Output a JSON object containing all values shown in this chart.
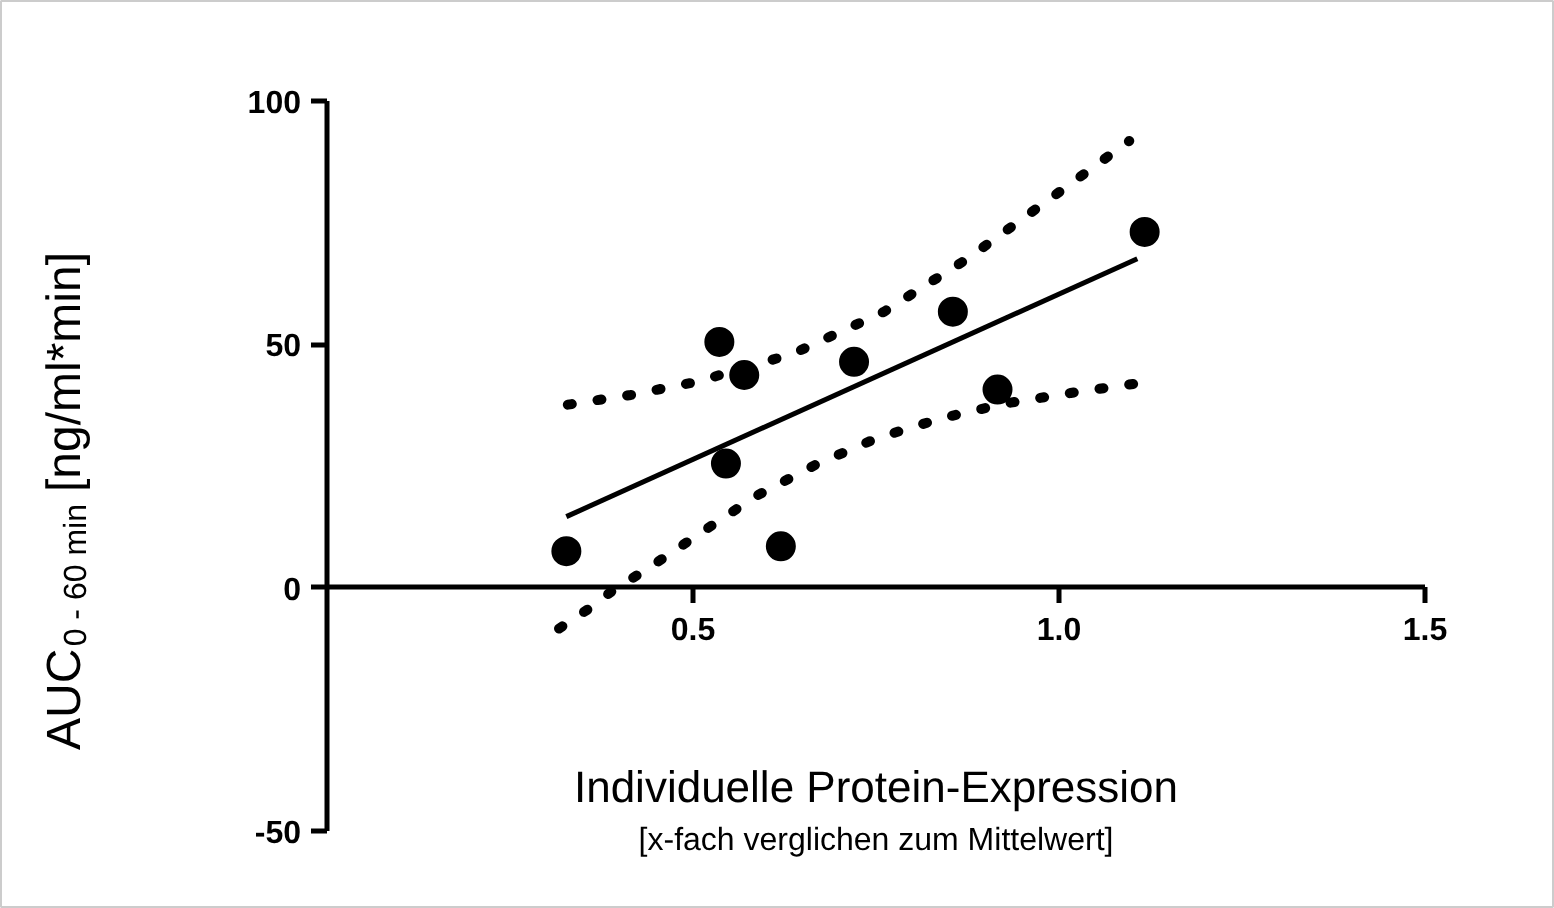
{
  "chart_data": {
    "type": "scatter",
    "xlabel": "Individuelle Protein-Expression\n[x-fach verglichen zum Mittelwert]",
    "ylabel": "AUC$_{0 - 60 min}$ [ng/ml*min]",
    "xlim": [
      0,
      1.5
    ],
    "ylim": [
      -50,
      100
    ],
    "xticks": [
      {
        "value": 0.5,
        "label": "0.5"
      },
      {
        "value": 1.0,
        "label": "1.0"
      },
      {
        "value": 1.5,
        "label": "1.5"
      }
    ],
    "yticks": [
      -50,
      0,
      50,
      100
    ],
    "grid": false,
    "marker": "circle",
    "series": [
      {
        "color": "#000000",
        "x": [
          0.327,
          0.536,
          0.57,
          0.545,
          0.62,
          0.72,
          0.855,
          0.916,
          1.117
        ],
        "values": [
          7.5,
          50.5,
          43.7,
          25.5,
          8.5,
          46.4,
          56.7,
          40.7,
          73.1
        ]
      },
      {
        "type": "line",
        "line_style": "solid",
        "marker": "none",
        "color": "#000000",
        "x": [
          0.327,
          1.107
        ],
        "values": [
          14.6,
          67.6
        ]
      },
      {
        "type": "line",
        "line_style": "dotted",
        "marker": "none",
        "color": "#000000",
        "x": [
          0.329,
          0.415,
          0.505,
          0.637,
          0.761,
          0.875,
          0.984,
          1.096
        ],
        "values": [
          37.6,
          39.6,
          42.3,
          48.1,
          56.7,
          67.6,
          79.5,
          91.8
        ]
      },
      {
        "type": "line",
        "line_style": "dotted",
        "marker": "none",
        "color": "#000000",
        "x": [
          0.317,
          0.357,
          0.393,
          0.436,
          0.511,
          0.587,
          0.668,
          0.751,
          0.839,
          0.925,
          1.016,
          1.103
        ],
        "values": [
          -8.4,
          -4.4,
          -0.3,
          3.7,
          11.3,
          18.9,
          25.3,
          30.7,
          34.8,
          37.8,
          40.0,
          41.9
        ]
      }
    ]
  }
}
